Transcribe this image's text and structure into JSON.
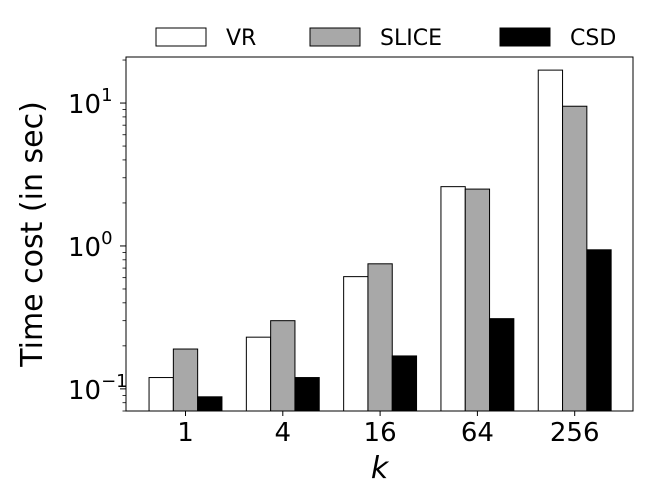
{
  "chart_data": {
    "type": "bar",
    "xlabel": "k",
    "ylabel": "Time cost (in sec)",
    "y_scale": "log",
    "ylim": [
      0.07,
      21
    ],
    "categories": [
      "1",
      "4",
      "16",
      "64",
      "256"
    ],
    "series": [
      {
        "name": "VR",
        "color": "#ffffff",
        "values": [
          0.12,
          0.23,
          0.61,
          2.6,
          17.0
        ]
      },
      {
        "name": "SLICE",
        "color": "#a8a8a8",
        "values": [
          0.19,
          0.3,
          0.75,
          2.5,
          9.5
        ]
      },
      {
        "name": "CSD",
        "color": "#000000",
        "values": [
          0.088,
          0.12,
          0.17,
          0.31,
          0.94
        ]
      }
    ],
    "y_ticks": [
      {
        "value": 0.1,
        "base": "10",
        "exp": "−1"
      },
      {
        "value": 1,
        "base": "10",
        "exp": "0"
      },
      {
        "value": 10,
        "base": "10",
        "exp": "1"
      }
    ],
    "legend": {
      "position": "top",
      "orientation": "horizontal"
    },
    "grid": false
  }
}
